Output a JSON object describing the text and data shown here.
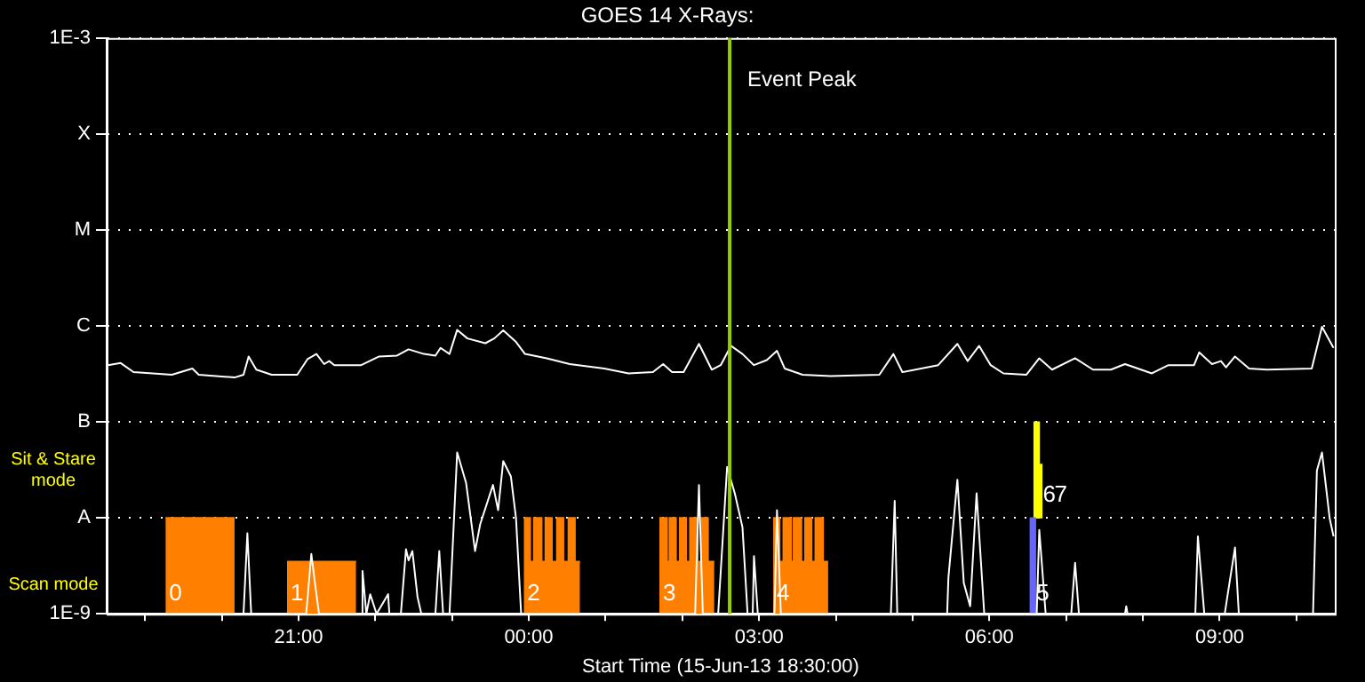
{
  "chart_data": {
    "type": "line",
    "title": "GOES 14 X-Rays:",
    "xlabel": "Start Time (15-Jun-13 18:30:00)",
    "xlim": [
      "--06-15T18:30",
      "--06-16T10:30"
    ],
    "xticks": [
      {
        "value": "--06-15T19:00",
        "label": null
      },
      {
        "value": "--06-15T20:00",
        "label": null
      },
      {
        "value": "--06-15T21:00",
        "label": "21:00"
      },
      {
        "value": "--06-15T22:00",
        "label": null
      },
      {
        "value": "--06-15T23:00",
        "label": null
      },
      {
        "value": "--06-16T00:00",
        "label": "00:00"
      },
      {
        "value": "--06-16T01:00",
        "label": null
      },
      {
        "value": "--06-16T02:00",
        "label": null
      },
      {
        "value": "--06-16T03:00",
        "label": "03:00"
      },
      {
        "value": "--06-16T04:00",
        "label": null
      },
      {
        "value": "--06-16T05:00",
        "label": null
      },
      {
        "value": "--06-16T06:00",
        "label": "06:00"
      },
      {
        "value": "--06-16T07:00",
        "label": null
      },
      {
        "value": "--06-16T08:00",
        "label": null
      },
      {
        "value": "--06-16T09:00",
        "label": "09:00"
      },
      {
        "value": "--06-16T10:00",
        "label": null
      }
    ],
    "ylim": [
      1e-09,
      0.001
    ],
    "yticks": [
      {
        "value": 1e-09,
        "label": "1E-9"
      },
      {
        "value": 1e-08,
        "label": "A"
      },
      {
        "value": 1e-07,
        "label": "B"
      },
      {
        "value": 1e-06,
        "label": "C"
      },
      {
        "value": 1e-05,
        "label": "M"
      },
      {
        "value": 0.0001,
        "label": "X"
      },
      {
        "value": 0.001,
        "label": "1E-3"
      }
    ],
    "log": "y",
    "grid": "y",
    "marker": "none",
    "series": [
      {
        "color": "#ffffff",
        "x": [
          "--06-15T18:31",
          "--06-15T18:41",
          "--06-15T18:51",
          "--06-15T19:21",
          "--06-15T19:37",
          "--06-15T19:42",
          "--06-15T20:10",
          "--06-15T20:17",
          "--06-15T20:21",
          "--06-15T20:27",
          "--06-15T20:39",
          "--06-15T20:59",
          "--06-15T21:07",
          "--06-15T21:14",
          "--06-15T21:20",
          "--06-15T21:24",
          "--06-15T21:28",
          "--06-15T21:49",
          "--06-15T22:03",
          "--06-15T22:17",
          "--06-15T22:26",
          "--06-15T22:38",
          "--06-15T22:47",
          "--06-15T22:51",
          "--06-15T22:58",
          "--06-15T23:04",
          "--06-15T23:12",
          "--06-15T23:26",
          "--06-15T23:33",
          "--06-15T23:40",
          "--06-15T23:50",
          "--06-15T23:57",
          "--06-16T00:14",
          "--06-16T00:32",
          "--06-16T00:59",
          "--06-16T01:18",
          "--06-16T01:37",
          "--06-16T01:45",
          "--06-16T01:52",
          "--06-16T02:01",
          "--06-16T02:13",
          "--06-16T02:23",
          "--06-16T02:30",
          "--06-16T02:38",
          "--06-16T02:47",
          "--06-16T02:56",
          "--06-16T03:06",
          "--06-16T03:14",
          "--06-16T03:20",
          "--06-16T03:34",
          "--06-16T03:56",
          "--06-16T04:34",
          "--06-16T04:45",
          "--06-16T04:52",
          "--06-16T05:20",
          "--06-16T05:35",
          "--06-16T05:43",
          "--06-16T05:52",
          "--06-16T06:01",
          "--06-16T06:11",
          "--06-16T06:29",
          "--06-16T06:39",
          "--06-16T06:49",
          "--06-16T07:07",
          "--06-16T07:21",
          "--06-16T07:35",
          "--06-16T07:46",
          "--06-16T08:07",
          "--06-16T08:20",
          "--06-16T08:40",
          "--06-16T08:44",
          "--06-16T08:54",
          "--06-16T09:01",
          "--06-16T09:05",
          "--06-16T09:12",
          "--06-16T09:23",
          "--06-16T09:37",
          "--06-16T10:12",
          "--06-16T10:20",
          "--06-16T10:29"
        ],
        "values": [
          3.9e-07,
          4.1e-07,
          3.3e-07,
          3.1e-07,
          3.6e-07,
          3.1e-07,
          2.9e-07,
          3.1e-07,
          4.8e-07,
          3.5e-07,
          3.1e-07,
          3.1e-07,
          4.5e-07,
          5.1e-07,
          4e-07,
          4.3e-07,
          3.9e-07,
          3.9e-07,
          4.8e-07,
          4.9e-07,
          5.7e-07,
          5.1e-07,
          4.9e-07,
          5.9e-07,
          5.1e-07,
          9.1e-07,
          7.4e-07,
          6.6e-07,
          7.4e-07,
          9e-07,
          6.8e-07,
          5.1e-07,
          4.6e-07,
          4e-07,
          3.6e-07,
          3.2e-07,
          3.3e-07,
          4e-07,
          3.3e-07,
          3.3e-07,
          6.5e-07,
          3.5e-07,
          3.9e-07,
          6.2e-07,
          5.1e-07,
          3.9e-07,
          4.4e-07,
          5.5e-07,
          3.6e-07,
          3.1e-07,
          3e-07,
          3.1e-07,
          5.1e-07,
          3.3e-07,
          3.9e-07,
          6.5e-07,
          4.3e-07,
          6.2e-07,
          3.9e-07,
          3.2e-07,
          3.1e-07,
          4.6e-07,
          3.5e-07,
          4.6e-07,
          3.5e-07,
          3.5e-07,
          4e-07,
          3.2e-07,
          3.9e-07,
          3.9e-07,
          5.3e-07,
          4e-07,
          4.3e-07,
          3.7e-07,
          4.8e-07,
          3.6e-07,
          3.5e-07,
          3.6e-07,
          9.8e-07,
          5.9e-07
        ]
      },
      {
        "color": "#ffffff",
        "x": [
          "--06-15T18:30",
          "--06-15T20:17",
          "--06-15T20:20",
          "--06-15T20:23",
          "--06-15T21:06",
          "--06-15T21:10",
          "--06-15T21:13",
          "--06-15T21:16",
          "--06-15T21:49",
          "--06-15T21:50",
          "--06-15T21:53",
          "--06-15T21:56",
          "--06-15T22:01",
          "--06-15T22:10",
          "--06-15T22:11",
          "--06-15T22:20",
          "--06-15T22:24",
          "--06-15T22:26",
          "--06-15T22:29",
          "--06-15T22:33",
          "--06-15T22:36",
          "--06-15T22:47",
          "--06-15T22:50",
          "--06-15T22:53",
          "--06-15T22:58",
          "--06-15T23:04",
          "--06-15T23:11",
          "--06-15T23:18",
          "--06-15T23:22",
          "--06-15T23:32",
          "--06-15T23:36",
          "--06-15T23:40",
          "--06-15T23:46",
          "--06-15T23:50",
          "--06-15T23:54",
          "--06-16T02:10",
          "--06-16T02:13",
          "--06-16T02:16",
          "--06-16T02:28",
          "--06-16T02:35",
          "--06-16T02:41",
          "--06-16T02:47",
          "--06-16T02:51",
          "--06-16T02:55",
          "--06-16T02:56",
          "--06-16T02:59",
          "--06-16T03:12",
          "--06-16T03:14",
          "--06-16T03:17",
          "--06-16T04:43",
          "--06-16T04:46",
          "--06-16T04:48",
          "--06-16T05:27",
          "--06-16T05:28",
          "--06-16T05:35",
          "--06-16T05:40",
          "--06-16T05:45",
          "--06-16T05:50",
          "--06-16T05:56",
          "--06-16T06:37",
          "--06-16T06:39",
          "--06-16T06:44",
          "--06-16T07:04",
          "--06-16T07:07",
          "--06-16T07:10",
          "--06-16T07:46",
          "--06-16T07:47",
          "--06-16T07:48",
          "--06-16T08:41",
          "--06-16T08:43",
          "--06-16T08:48",
          "--06-16T09:04",
          "--06-16T09:06",
          "--06-16T09:12",
          "--06-16T09:15",
          "--06-16T10:13",
          "--06-16T10:16",
          "--06-16T10:20",
          "--06-16T10:26",
          "--06-16T10:29"
        ],
        "values": [
          1e-09,
          1e-09,
          6.9e-09,
          1e-09,
          1e-09,
          4.2e-09,
          2e-09,
          1e-09,
          1e-09,
          2.8e-09,
          1e-09,
          1.6e-09,
          1e-09,
          1.6e-09,
          1e-09,
          1e-09,
          4.7e-09,
          3.6e-09,
          4.5e-09,
          1.5e-09,
          1e-09,
          1e-09,
          4.5e-09,
          1e-09,
          1e-09,
          4.8e-08,
          2.3e-08,
          4.5e-09,
          8.6e-09,
          2.2e-08,
          1.2e-08,
          3.9e-08,
          2.7e-08,
          9.9e-09,
          1e-09,
          1e-09,
          2.2e-08,
          1e-09,
          1e-09,
          3.4e-08,
          1.8e-08,
          8e-09,
          1e-09,
          1e-09,
          4e-09,
          1e-09,
          1e-09,
          1.2e-08,
          1e-09,
          1e-09,
          1.5e-08,
          1e-09,
          1e-09,
          2.4e-09,
          2.5e-08,
          2.1e-09,
          1.2e-09,
          1.8e-08,
          1e-09,
          1e-09,
          7.5e-09,
          1e-09,
          1e-09,
          3.4e-09,
          1e-09,
          1e-09,
          1.2e-09,
          1e-09,
          1e-09,
          6.4e-09,
          1e-09,
          1e-09,
          1.5e-09,
          4.9e-09,
          1e-09,
          1e-09,
          3.1e-08,
          4.8e-08,
          9.9e-09,
          6.4e-09
        ]
      },
      {
        "type": "area",
        "color": "#ff8000",
        "x": [
          "--06-15T19:16",
          "--06-15T20:10",
          "--06-15T20:30",
          "--06-15T20:51",
          "--06-15T21:45",
          "--06-15T22:00",
          "--06-15T23:56",
          "--06-16T00:01",
          "--06-16T00:01",
          "--06-16T00:04",
          "--06-16T00:04",
          "--06-16T00:10",
          "--06-16T00:10",
          "--06-16T00:13",
          "--06-16T00:13",
          "--06-16T00:18",
          "--06-16T00:18",
          "--06-16T00:22",
          "--06-16T00:22",
          "--06-16T00:27",
          "--06-16T00:27",
          "--06-16T00:31",
          "--06-16T00:31",
          "--06-16T00:36",
          "--06-16T00:36",
          "--06-16T00:40",
          "--06-16T01:00",
          "--06-16T01:42",
          "--06-16T01:48",
          "--06-16T01:48",
          "--06-16T01:50",
          "--06-16T01:50",
          "--06-16T01:55",
          "--06-16T01:55",
          "--06-16T01:58",
          "--06-16T01:58",
          "--06-16T02:03",
          "--06-16T02:03",
          "--06-16T02:06",
          "--06-16T02:06",
          "--06-16T02:12",
          "--06-16T02:12",
          "--06-16T02:15",
          "--06-16T02:15",
          "--06-16T02:20",
          "--06-16T02:20",
          "--06-16T02:25",
          "--06-16T02:50",
          "--06-16T03:11",
          "--06-16T03:16",
          "--06-16T03:16",
          "--06-16T03:19",
          "--06-16T03:19",
          "--06-16T03:25",
          "--06-16T03:25",
          "--06-16T03:27",
          "--06-16T03:27",
          "--06-16T03:33",
          "--06-16T03:33",
          "--06-16T03:36",
          "--06-16T03:36",
          "--06-16T03:41",
          "--06-16T03:41",
          "--06-16T03:44",
          "--06-16T03:44",
          "--06-16T03:50",
          "--06-16T03:50",
          "--06-16T03:54"
        ],
        "values": [
          1e-08,
          1e-08,
          null,
          3.5e-09,
          3.5e-09,
          null,
          1e-08,
          1e-08,
          3.5e-09,
          3.5e-09,
          1e-08,
          1e-08,
          3.5e-09,
          3.5e-09,
          1e-08,
          1e-08,
          3.5e-09,
          3.5e-09,
          1e-08,
          1e-08,
          3.5e-09,
          3.5e-09,
          1e-08,
          1e-08,
          3.5e-09,
          3.5e-09,
          null,
          1e-08,
          1e-08,
          3.5e-09,
          3.5e-09,
          1e-08,
          1e-08,
          3.5e-09,
          3.5e-09,
          1e-08,
          1e-08,
          3.5e-09,
          3.5e-09,
          1e-08,
          1e-08,
          3.5e-09,
          3.5e-09,
          1e-08,
          1e-08,
          3.5e-09,
          3.5e-09,
          null,
          1e-08,
          1e-08,
          3.5e-09,
          3.5e-09,
          1e-08,
          1e-08,
          3.5e-09,
          3.5e-09,
          1e-08,
          1e-08,
          3.5e-09,
          3.5e-09,
          1e-08,
          1e-08,
          3.5e-09,
          3.5e-09,
          1e-08,
          1e-08,
          3.5e-09,
          3.5e-09
        ]
      },
      {
        "type": "bar",
        "color": "#6666ff",
        "x": [
          "--06-16T06:34"
        ],
        "base": [
          1e-09
        ],
        "values": [
          9e-09
        ]
      },
      {
        "type": "bar",
        "color": "#ffff00",
        "x": [
          "--06-16T06:37",
          "--06-16T06:39"
        ],
        "base": [
          1e-08,
          1e-08
        ],
        "values": [
          9e-08,
          2.6e-08
        ]
      }
    ],
    "ref_lines": [
      {
        "axis": "x",
        "value": "--06-16T02:37",
        "label": "Event Peak",
        "color": "#99cc00"
      }
    ],
    "annotations": [
      "Sit & Stare mode",
      "Scan mode",
      {
        "text": "0",
        "x": "--06-15T19:16",
        "y": 1.6e-09
      },
      {
        "text": "1",
        "x": "--06-15T20:51",
        "y": 1.6e-09
      },
      {
        "text": "2",
        "x": "--06-15T23:56",
        "y": 1.6e-09
      },
      {
        "text": "3",
        "x": "--06-16T01:42",
        "y": 1.6e-09
      },
      {
        "text": "4",
        "x": "--06-16T03:11",
        "y": 1.6e-09
      },
      {
        "text": "5",
        "x": "--06-16T06:34",
        "y": 1.6e-09
      },
      {
        "text": "6",
        "x": "--06-16T06:39",
        "y": 1.7e-08
      },
      {
        "text": "7",
        "x": "--06-16T06:48",
        "y": 1.7e-08
      }
    ]
  }
}
